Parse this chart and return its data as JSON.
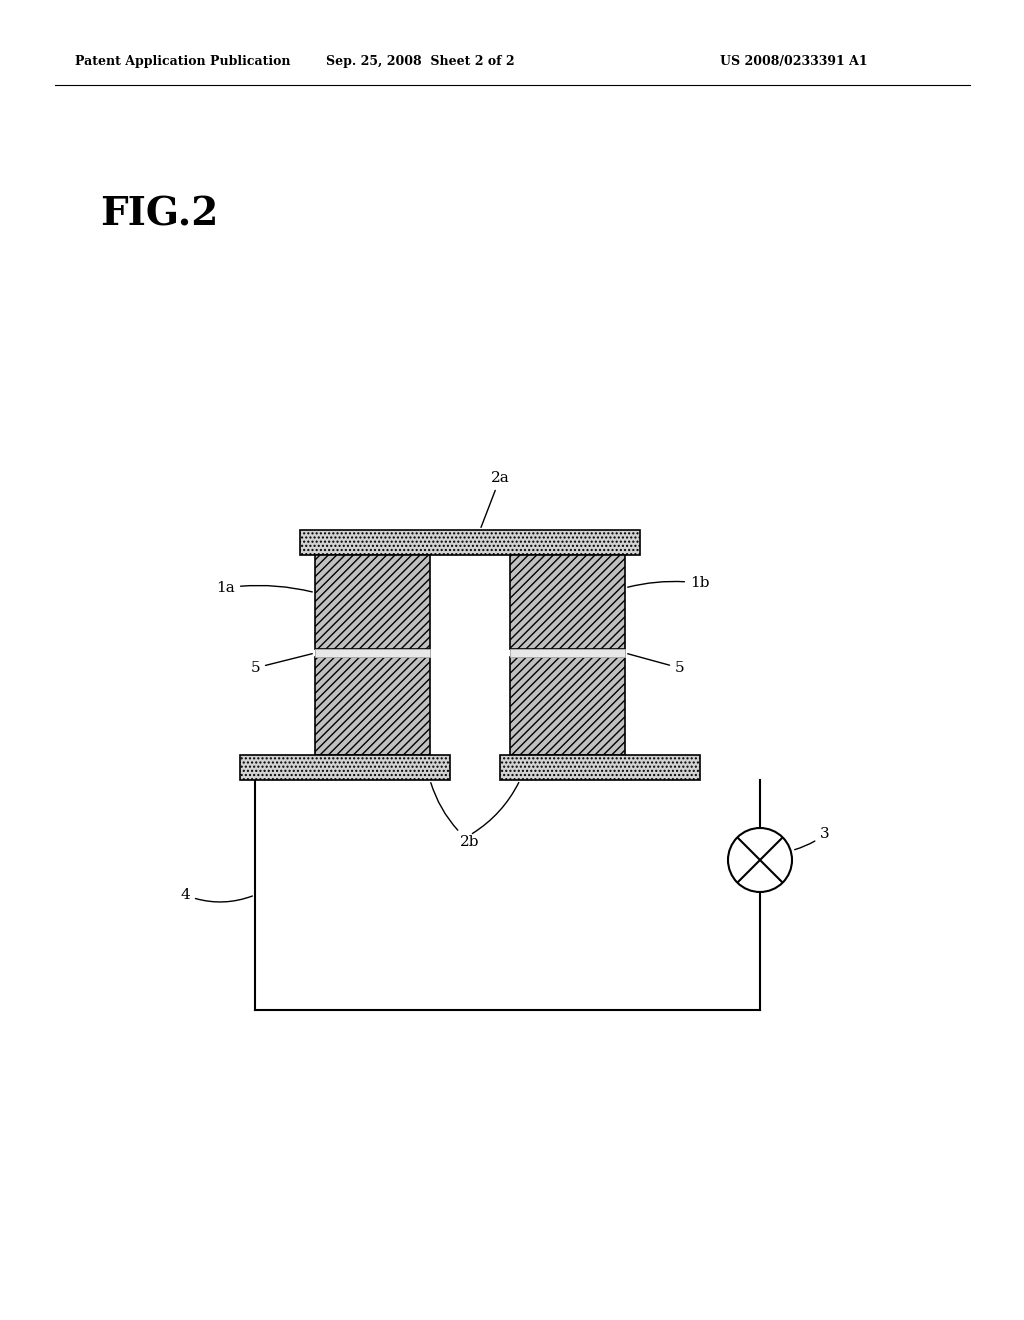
{
  "bg_color": "#ffffff",
  "header_left": "Patent Application Publication",
  "header_mid": "Sep. 25, 2008  Sheet 2 of 2",
  "header_right": "US 2008/0233391 A1",
  "fig_label": "FIG.2",
  "label_2a": "2a",
  "label_2b": "2b",
  "label_1a": "1a",
  "label_1b": "1b",
  "label_3": "3",
  "label_4": "4",
  "label_5a": "5",
  "label_5b": "5",
  "line_color": "#000000",
  "pillar_fill": "#b8b8b8",
  "plate_fill": "#c8c8c8",
  "white_band_fill": "#f0f0f0"
}
